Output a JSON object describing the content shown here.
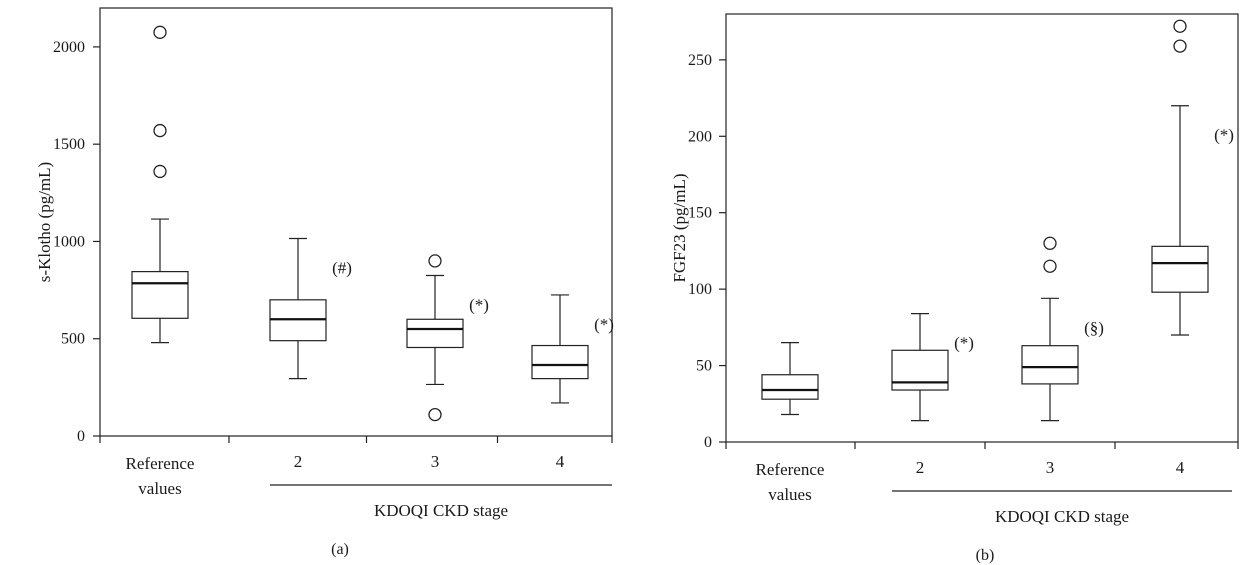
{
  "chart_data": [
    {
      "type": "box",
      "panel_label": "(a)",
      "ylabel": "s-Klotho (pg/mL)",
      "ylim": [
        0,
        2200
      ],
      "yticks": [
        0,
        500,
        1000,
        1500,
        2000
      ],
      "categories": [
        "Reference values",
        "2",
        "3",
        "4"
      ],
      "group_label": "KDOQI CKD stage",
      "grid": false,
      "boxes": [
        {
          "category": "Reference values",
          "whisker_low": 480,
          "q1": 605,
          "median": 785,
          "q3": 845,
          "whisker_high": 1115,
          "outliers": [
            1360,
            1570,
            2075
          ],
          "annotation": ""
        },
        {
          "category": "2",
          "whisker_low": 295,
          "q1": 490,
          "median": 600,
          "q3": 700,
          "whisker_high": 1015,
          "outliers": [],
          "annotation": "(#)"
        },
        {
          "category": "3",
          "whisker_low": 265,
          "q1": 455,
          "median": 550,
          "q3": 600,
          "whisker_high": 825,
          "outliers": [
            110,
            900
          ],
          "annotation": "(*)"
        },
        {
          "category": "4",
          "whisker_low": 170,
          "q1": 295,
          "median": 365,
          "q3": 465,
          "whisker_high": 725,
          "outliers": [],
          "annotation": "(*)"
        }
      ]
    },
    {
      "type": "box",
      "panel_label": "(b)",
      "ylabel": "FGF23 (pg/mL)",
      "ylim": [
        0,
        280
      ],
      "yticks": [
        0,
        50,
        100,
        150,
        200,
        250
      ],
      "categories": [
        "Reference values",
        "2",
        "3",
        "4"
      ],
      "group_label": "KDOQI CKD stage",
      "grid": false,
      "boxes": [
        {
          "category": "Reference values",
          "whisker_low": 18,
          "q1": 28,
          "median": 34,
          "q3": 44,
          "whisker_high": 65,
          "outliers": [],
          "annotation": ""
        },
        {
          "category": "2",
          "whisker_low": 14,
          "q1": 34,
          "median": 39,
          "q3": 60,
          "whisker_high": 84,
          "outliers": [],
          "annotation": "(*)"
        },
        {
          "category": "3",
          "whisker_low": 14,
          "q1": 38,
          "median": 49,
          "q3": 63,
          "whisker_high": 94,
          "outliers": [
            115,
            130
          ],
          "annotation": "(§)"
        },
        {
          "category": "4",
          "whisker_low": 70,
          "q1": 98,
          "median": 117,
          "q3": 128,
          "whisker_high": 220,
          "outliers": [
            259,
            272
          ],
          "annotation": "(*)"
        }
      ]
    }
  ]
}
